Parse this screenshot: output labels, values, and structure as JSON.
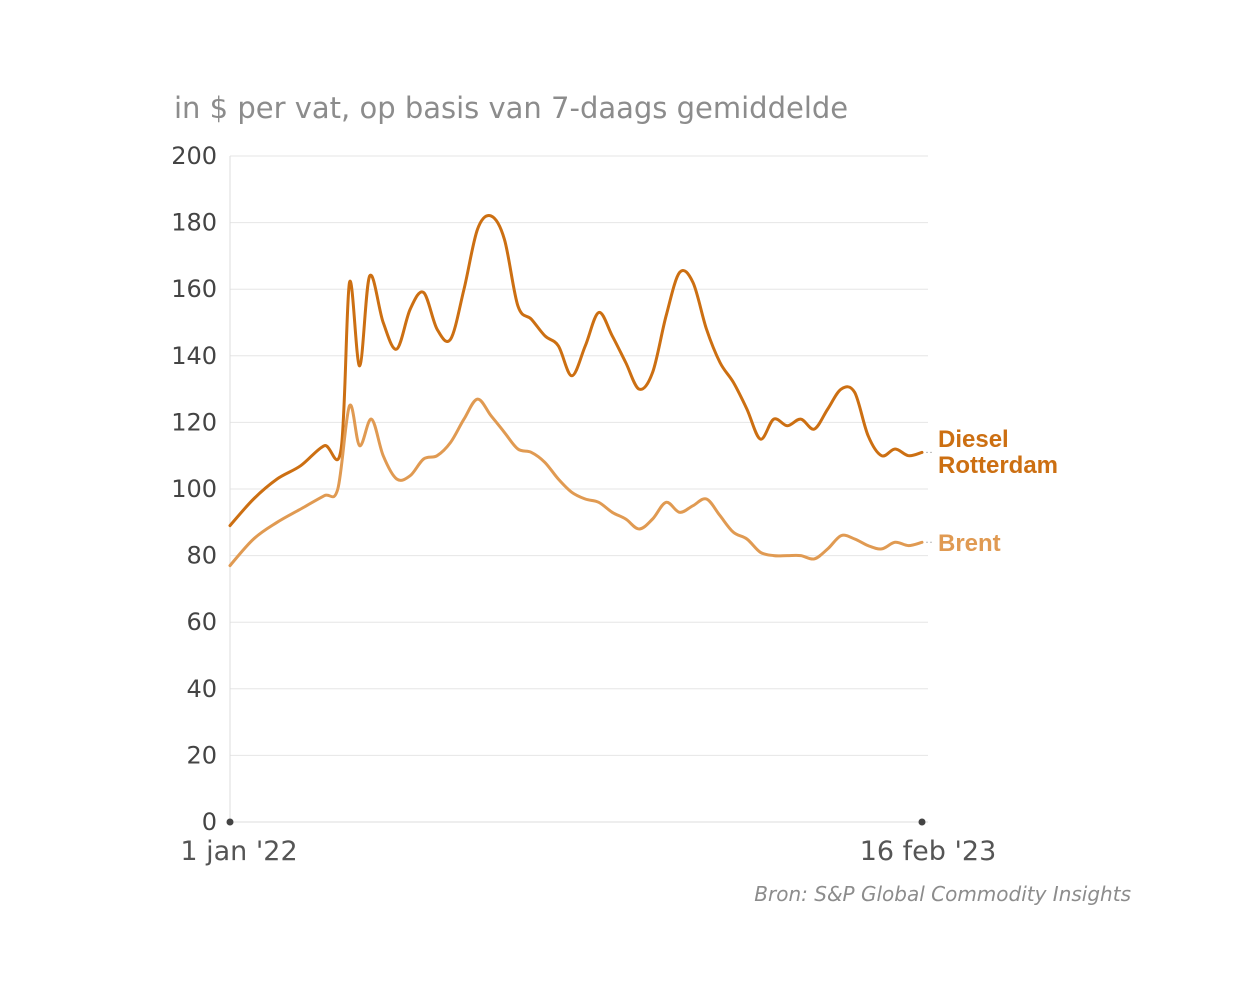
{
  "chart_data": {
    "type": "line",
    "subtitle": "in $ per vat, op basis van 7-daags gemiddelde",
    "source": "Bron: S&P Global Commodity Insights",
    "ylim": [
      0,
      200
    ],
    "yticks": [
      0,
      20,
      40,
      60,
      80,
      100,
      120,
      140,
      160,
      180,
      200
    ],
    "xlim": [
      "2022-01-01",
      "2023-02-16"
    ],
    "xtick_labels": [
      "1 jan '22",
      "16 feb '23"
    ],
    "grid": true,
    "series": [
      {
        "name": "Diesel Rotterdam",
        "label_lines": [
          "Diesel",
          "Rotterdam"
        ],
        "color": "#cc6f12",
        "x": [
          "2022-01-01",
          "2022-01-15",
          "2022-01-29",
          "2022-02-12",
          "2022-02-26",
          "2022-03-08",
          "2022-03-13",
          "2022-03-19",
          "2022-03-25",
          "2022-04-02",
          "2022-04-10",
          "2022-04-18",
          "2022-04-26",
          "2022-05-04",
          "2022-05-12",
          "2022-05-20",
          "2022-05-28",
          "2022-06-05",
          "2022-06-13",
          "2022-06-21",
          "2022-06-29",
          "2022-07-07",
          "2022-07-15",
          "2022-07-23",
          "2022-07-31",
          "2022-08-08",
          "2022-08-16",
          "2022-08-24",
          "2022-09-01",
          "2022-09-09",
          "2022-09-17",
          "2022-09-25",
          "2022-10-03",
          "2022-10-11",
          "2022-10-19",
          "2022-10-27",
          "2022-11-04",
          "2022-11-12",
          "2022-11-20",
          "2022-11-28",
          "2022-12-06",
          "2022-12-14",
          "2022-12-22",
          "2022-12-30",
          "2023-01-07",
          "2023-01-15",
          "2023-01-23",
          "2023-01-31",
          "2023-02-08",
          "2023-02-16"
        ],
        "values": [
          89,
          97,
          103,
          107,
          113,
          112,
          162,
          137,
          164,
          150,
          142,
          154,
          159,
          148,
          145,
          160,
          178,
          182,
          175,
          155,
          151,
          146,
          143,
          134,
          143,
          153,
          146,
          138,
          130,
          135,
          152,
          165,
          162,
          148,
          138,
          132,
          124,
          115,
          121,
          119,
          121,
          118,
          124,
          130,
          129,
          116,
          110,
          112,
          110,
          111
        ]
      },
      {
        "name": "Brent",
        "label_lines": [
          "Brent"
        ],
        "color": "#e09a52",
        "x": [
          "2022-01-01",
          "2022-01-15",
          "2022-01-29",
          "2022-02-12",
          "2022-02-26",
          "2022-03-06",
          "2022-03-13",
          "2022-03-19",
          "2022-03-26",
          "2022-04-02",
          "2022-04-10",
          "2022-04-18",
          "2022-04-26",
          "2022-05-04",
          "2022-05-12",
          "2022-05-20",
          "2022-05-28",
          "2022-06-05",
          "2022-06-13",
          "2022-06-21",
          "2022-06-29",
          "2022-07-07",
          "2022-07-15",
          "2022-07-23",
          "2022-07-31",
          "2022-08-08",
          "2022-08-16",
          "2022-08-24",
          "2022-09-01",
          "2022-09-09",
          "2022-09-17",
          "2022-09-25",
          "2022-10-03",
          "2022-10-11",
          "2022-10-19",
          "2022-10-27",
          "2022-11-04",
          "2022-11-12",
          "2022-11-20",
          "2022-11-28",
          "2022-12-06",
          "2022-12-14",
          "2022-12-22",
          "2022-12-30",
          "2023-01-07",
          "2023-01-15",
          "2023-01-23",
          "2023-01-31",
          "2023-02-08",
          "2023-02-16"
        ],
        "values": [
          77,
          85,
          90,
          94,
          98,
          100,
          125,
          113,
          121,
          110,
          103,
          104,
          109,
          110,
          114,
          121,
          127,
          122,
          117,
          112,
          111,
          108,
          103,
          99,
          97,
          96,
          93,
          91,
          88,
          91,
          96,
          93,
          95,
          97,
          92,
          87,
          85,
          81,
          80,
          80,
          80,
          79,
          82,
          86,
          85,
          83,
          82,
          84,
          83,
          84
        ]
      }
    ]
  }
}
